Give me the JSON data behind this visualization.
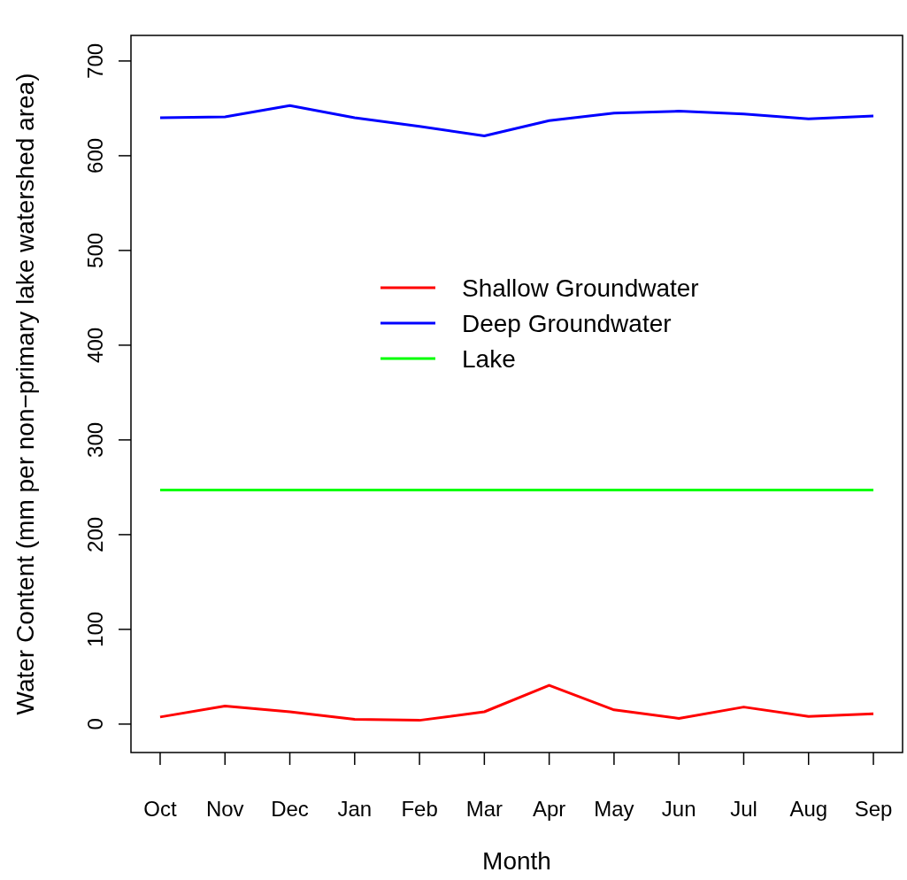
{
  "chart_data": {
    "type": "line",
    "xlabel": "Month",
    "ylabel": "Water Content (mm per non−primary lake watershed area)",
    "categories": [
      "Oct",
      "Nov",
      "Dec",
      "Jan",
      "Feb",
      "Mar",
      "Apr",
      "May",
      "Jun",
      "Jul",
      "Aug",
      "Sep"
    ],
    "series": [
      {
        "name": "Shallow Groundwater",
        "color": "#ff0000",
        "values": [
          7.5,
          19,
          13,
          5,
          4,
          13,
          41,
          15,
          6,
          18,
          8,
          11
        ]
      },
      {
        "name": "Deep Groundwater",
        "color": "#0000ff",
        "values": [
          640,
          641,
          653,
          640,
          631,
          621,
          637,
          645,
          647,
          644,
          639,
          642
        ]
      },
      {
        "name": "Lake",
        "color": "#00ff00",
        "values": [
          247,
          247,
          247,
          247,
          247,
          247,
          247,
          247,
          247,
          247,
          247,
          247
        ]
      }
    ],
    "ylim": [
      -30,
      727
    ],
    "yticks": [
      0,
      100,
      200,
      300,
      400,
      500,
      600,
      700
    ],
    "legend": "top",
    "grid": false,
    "marker": "none",
    "line_style": "solid"
  }
}
